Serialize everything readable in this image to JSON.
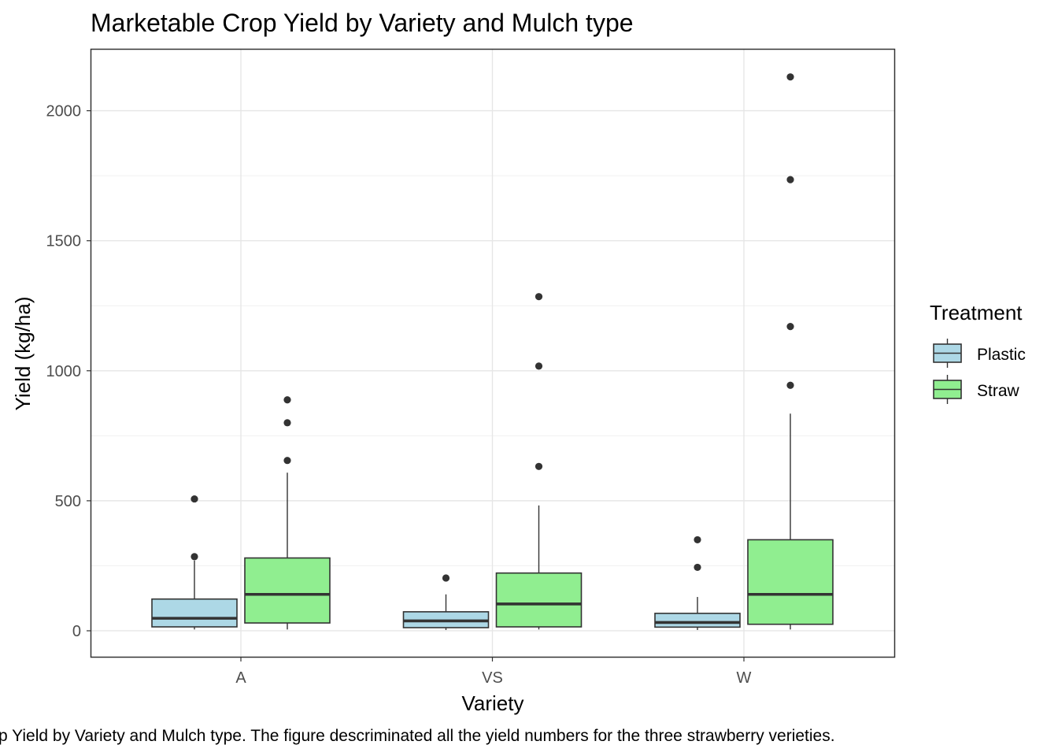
{
  "chart_data": {
    "type": "boxplot",
    "title": "Marketable Crop Yield by Variety and Mulch type",
    "xlabel": "Variety",
    "ylabel": "Yield (kg/ha)",
    "ylim": [
      -100,
      2235
    ],
    "yticks": [
      0,
      500,
      1000,
      1500,
      2000
    ],
    "grid": true,
    "legend": {
      "title": "Treatment",
      "position": "right"
    },
    "categories": [
      "A",
      "VS",
      "W"
    ],
    "series": [
      {
        "name": "Plastic",
        "color": "#add8e6",
        "boxes": [
          {
            "category": "A",
            "whisker_low": 5,
            "q1": 15,
            "median": 48,
            "q3": 122,
            "whisker_high": 270,
            "outliers": [
              285,
              507
            ]
          },
          {
            "category": "VS",
            "whisker_low": 3,
            "q1": 12,
            "median": 38,
            "q3": 73,
            "whisker_high": 140,
            "outliers": [
              203
            ]
          },
          {
            "category": "W",
            "whisker_low": 3,
            "q1": 14,
            "median": 32,
            "q3": 67,
            "whisker_high": 130,
            "outliers": [
              244,
              350
            ]
          }
        ]
      },
      {
        "name": "Straw",
        "color": "#90ee90",
        "boxes": [
          {
            "category": "A",
            "whisker_low": 5,
            "q1": 30,
            "median": 140,
            "q3": 280,
            "whisker_high": 608,
            "outliers": [
              655,
              800,
              888
            ]
          },
          {
            "category": "VS",
            "whisker_low": 5,
            "q1": 15,
            "median": 103,
            "q3": 222,
            "whisker_high": 482,
            "outliers": [
              632,
              1018,
              1285
            ]
          },
          {
            "category": "W",
            "whisker_low": 5,
            "q1": 25,
            "median": 140,
            "q3": 350,
            "whisker_high": 835,
            "outliers": [
              944,
              1170,
              1735,
              2130
            ]
          }
        ]
      }
    ]
  },
  "caption": "p Yield by Variety and Mulch type. The figure descriminated all the yield numbers for the three strawberry verieties."
}
